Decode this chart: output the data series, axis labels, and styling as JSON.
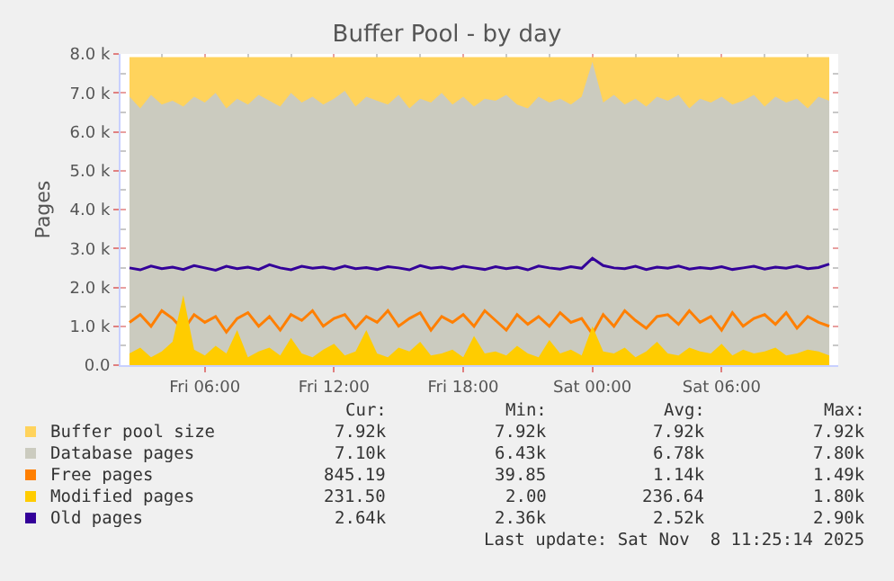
{
  "chart_data": {
    "type": "area",
    "title": "Buffer Pool - by day",
    "ylabel": "Pages",
    "x": [
      "2025-11-07T02:30",
      "2025-11-07T03:00",
      "2025-11-07T03:30",
      "2025-11-07T04:00",
      "2025-11-07T04:30",
      "2025-11-07T05:00",
      "2025-11-07T05:30",
      "2025-11-07T06:00",
      "2025-11-07T06:30",
      "2025-11-07T07:00",
      "2025-11-07T07:30",
      "2025-11-07T08:00",
      "2025-11-07T08:30",
      "2025-11-07T09:00",
      "2025-11-07T09:30",
      "2025-11-07T10:00",
      "2025-11-07T10:30",
      "2025-11-07T11:00",
      "2025-11-07T11:30",
      "2025-11-07T12:00",
      "2025-11-07T12:30",
      "2025-11-07T13:00",
      "2025-11-07T13:30",
      "2025-11-07T14:00",
      "2025-11-07T14:30",
      "2025-11-07T15:00",
      "2025-11-07T15:30",
      "2025-11-07T16:00",
      "2025-11-07T16:30",
      "2025-11-07T17:00",
      "2025-11-07T17:30",
      "2025-11-07T18:00",
      "2025-11-07T18:30",
      "2025-11-07T19:00",
      "2025-11-07T19:30",
      "2025-11-07T20:00",
      "2025-11-07T20:30",
      "2025-11-07T21:00",
      "2025-11-07T21:30",
      "2025-11-07T22:00",
      "2025-11-07T22:30",
      "2025-11-07T23:00",
      "2025-11-07T23:30",
      "2025-11-08T00:00",
      "2025-11-08T00:30",
      "2025-11-08T01:00",
      "2025-11-08T01:30",
      "2025-11-08T02:00",
      "2025-11-08T02:30",
      "2025-11-08T03:00",
      "2025-11-08T03:30",
      "2025-11-08T04:00",
      "2025-11-08T04:30",
      "2025-11-08T05:00",
      "2025-11-08T05:30",
      "2025-11-08T06:00",
      "2025-11-08T06:30",
      "2025-11-08T07:00",
      "2025-11-08T07:30",
      "2025-11-08T08:00",
      "2025-11-08T08:30",
      "2025-11-08T09:00",
      "2025-11-08T09:30",
      "2025-11-08T10:00",
      "2025-11-08T10:30",
      "2025-11-08T11:00"
    ],
    "series": [
      {
        "name": "Buffer pool size",
        "color": "#ffd35c",
        "values": [
          7920,
          7920,
          7920,
          7920,
          7920,
          7920,
          7920,
          7920,
          7920,
          7920,
          7920,
          7920,
          7920,
          7920,
          7920,
          7920,
          7920,
          7920,
          7920,
          7920,
          7920,
          7920,
          7920,
          7920,
          7920,
          7920,
          7920,
          7920,
          7920,
          7920,
          7920,
          7920,
          7920,
          7920,
          7920,
          7920,
          7920,
          7920,
          7920,
          7920,
          7920,
          7920,
          7920,
          7920,
          7920,
          7920,
          7920,
          7920,
          7920,
          7920,
          7920,
          7920,
          7920,
          7920,
          7920,
          7920,
          7920,
          7920,
          7920,
          7920,
          7920,
          7920,
          7920,
          7920,
          7920,
          7920
        ]
      },
      {
        "name": "Database pages",
        "color": "#cbcbbf",
        "values": [
          6900,
          6600,
          6950,
          6700,
          6800,
          6650,
          6900,
          6750,
          7000,
          6600,
          6850,
          6700,
          6950,
          6800,
          6650,
          7000,
          6750,
          6900,
          6700,
          6850,
          7050,
          6650,
          6900,
          6800,
          6700,
          6950,
          6600,
          6850,
          6750,
          7000,
          6700,
          6900,
          6650,
          6850,
          6800,
          6950,
          6700,
          6600,
          6900,
          6750,
          6850,
          6700,
          6900,
          7800,
          6750,
          6950,
          6700,
          6850,
          6650,
          6900,
          6800,
          6950,
          6600,
          6850,
          6750,
          6900,
          6700,
          6800,
          6950,
          6650,
          6900,
          6750,
          6850,
          6600,
          6900,
          6800
        ]
      },
      {
        "name": "Free pages",
        "type": "line",
        "color": "#ff7f00",
        "values": [
          1100,
          1300,
          1000,
          1400,
          1200,
          900,
          1300,
          1100,
          1250,
          850,
          1200,
          1350,
          1000,
          1250,
          900,
          1300,
          1150,
          1400,
          1000,
          1200,
          1300,
          950,
          1250,
          1100,
          1400,
          1000,
          1200,
          1350,
          900,
          1250,
          1100,
          1300,
          1000,
          1400,
          1150,
          900,
          1300,
          1050,
          1250,
          1000,
          1350,
          1100,
          1200,
          800,
          1300,
          1000,
          1400,
          1150,
          950,
          1250,
          1300,
          1050,
          1400,
          1100,
          1250,
          900,
          1350,
          1000,
          1200,
          1300,
          1050,
          1350,
          950,
          1250,
          1100,
          1000
        ]
      },
      {
        "name": "Modified pages",
        "color": "#ffcc00",
        "values": [
          300,
          450,
          200,
          350,
          600,
          1800,
          400,
          250,
          500,
          300,
          900,
          200,
          350,
          450,
          250,
          700,
          300,
          200,
          400,
          550,
          250,
          350,
          900,
          300,
          200,
          450,
          350,
          600,
          250,
          300,
          400,
          200,
          750,
          300,
          350,
          250,
          500,
          300,
          200,
          650,
          300,
          400,
          250,
          1000,
          350,
          300,
          450,
          200,
          350,
          600,
          300,
          250,
          450,
          350,
          300,
          550,
          250,
          400,
          300,
          350,
          450,
          250,
          300,
          400,
          350,
          250
        ]
      },
      {
        "name": "Old pages",
        "type": "line",
        "color": "#330099",
        "values": [
          2500,
          2450,
          2550,
          2480,
          2520,
          2460,
          2560,
          2500,
          2440,
          2540,
          2480,
          2520,
          2460,
          2580,
          2500,
          2450,
          2540,
          2490,
          2520,
          2470,
          2550,
          2480,
          2510,
          2460,
          2530,
          2500,
          2450,
          2560,
          2490,
          2520,
          2470,
          2540,
          2500,
          2460,
          2530,
          2480,
          2520,
          2450,
          2550,
          2500,
          2470,
          2530,
          2490,
          2750,
          2560,
          2500,
          2480,
          2540,
          2460,
          2520,
          2490,
          2550,
          2470,
          2510,
          2480,
          2530,
          2460,
          2500,
          2540,
          2470,
          2520,
          2490,
          2550,
          2480,
          2510,
          2600
        ]
      }
    ],
    "xlim": [
      "2025-11-07T02:05",
      "2025-11-08T11:25"
    ],
    "xticks": [
      {
        "value": "2025-11-07T06:00",
        "label": "Fri 06:00"
      },
      {
        "value": "2025-11-07T12:00",
        "label": "Fri 12:00"
      },
      {
        "value": "2025-11-07T18:00",
        "label": "Fri 18:00"
      },
      {
        "value": "2025-11-08T00:00",
        "label": "Sat 00:00"
      },
      {
        "value": "2025-11-08T06:00",
        "label": "Sat 06:00"
      }
    ],
    "ylim": [
      0,
      8000
    ],
    "yticks": [
      {
        "value": 0,
        "label": "0.0"
      },
      {
        "value": 1000,
        "label": "1.0 k"
      },
      {
        "value": 2000,
        "label": "2.0 k"
      },
      {
        "value": 3000,
        "label": "3.0 k"
      },
      {
        "value": 4000,
        "label": "4.0 k"
      },
      {
        "value": 5000,
        "label": "5.0 k"
      },
      {
        "value": 6000,
        "label": "6.0 k"
      },
      {
        "value": 7000,
        "label": "7.0 k"
      },
      {
        "value": 8000,
        "label": "8.0 k"
      }
    ],
    "grid": true,
    "legend": "bottom",
    "annotations": [
      "Cur:",
      "Min:",
      "Avg:",
      "Max:",
      "7.92k",
      "7.92k",
      "7.92k",
      "7.92k",
      "7.10k",
      "6.43k",
      "6.78k",
      "7.80k",
      "845.19",
      "39.85",
      "1.14k",
      "1.49k",
      "231.50",
      "2.00",
      "236.64",
      "1.80k",
      "2.64k",
      "2.36k",
      "2.52k",
      "2.90k",
      "Last update: Sat Nov  8 11:25:14 2025"
    ]
  }
}
